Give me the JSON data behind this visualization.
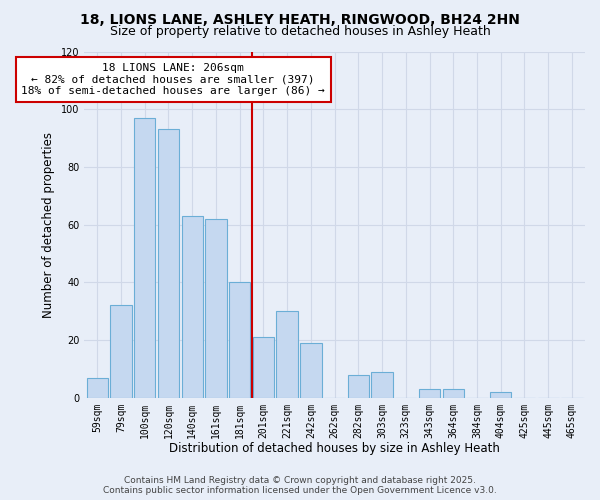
{
  "title": "18, LIONS LANE, ASHLEY HEATH, RINGWOOD, BH24 2HN",
  "subtitle": "Size of property relative to detached houses in Ashley Heath",
  "xlabel": "Distribution of detached houses by size in Ashley Heath",
  "ylabel": "Number of detached properties",
  "categories": [
    "59sqm",
    "79sqm",
    "100sqm",
    "120sqm",
    "140sqm",
    "161sqm",
    "181sqm",
    "201sqm",
    "221sqm",
    "242sqm",
    "262sqm",
    "282sqm",
    "303sqm",
    "323sqm",
    "343sqm",
    "364sqm",
    "384sqm",
    "404sqm",
    "425sqm",
    "445sqm",
    "465sqm"
  ],
  "values": [
    7,
    32,
    97,
    93,
    63,
    62,
    40,
    21,
    30,
    19,
    0,
    8,
    9,
    0,
    3,
    3,
    0,
    2,
    0,
    0,
    0
  ],
  "bar_color": "#c5d8f0",
  "bar_edge_color": "#6baed6",
  "ylim": [
    0,
    120
  ],
  "yticks": [
    0,
    20,
    40,
    60,
    80,
    100,
    120
  ],
  "vline_index": 7,
  "vline_color": "#cc0000",
  "annotation_title": "18 LIONS LANE: 206sqm",
  "annotation_line1": "← 82% of detached houses are smaller (397)",
  "annotation_line2": "18% of semi-detached houses are larger (86) →",
  "annotation_box_facecolor": "#ffffff",
  "annotation_box_edgecolor": "#cc0000",
  "footer_line1": "Contains HM Land Registry data © Crown copyright and database right 2025.",
  "footer_line2": "Contains public sector information licensed under the Open Government Licence v3.0.",
  "background_color": "#e8eef8",
  "grid_color": "#d0d8e8",
  "title_fontsize": 10,
  "subtitle_fontsize": 9,
  "axis_label_fontsize": 8.5,
  "tick_fontsize": 7,
  "annotation_fontsize": 8,
  "footer_fontsize": 6.5
}
